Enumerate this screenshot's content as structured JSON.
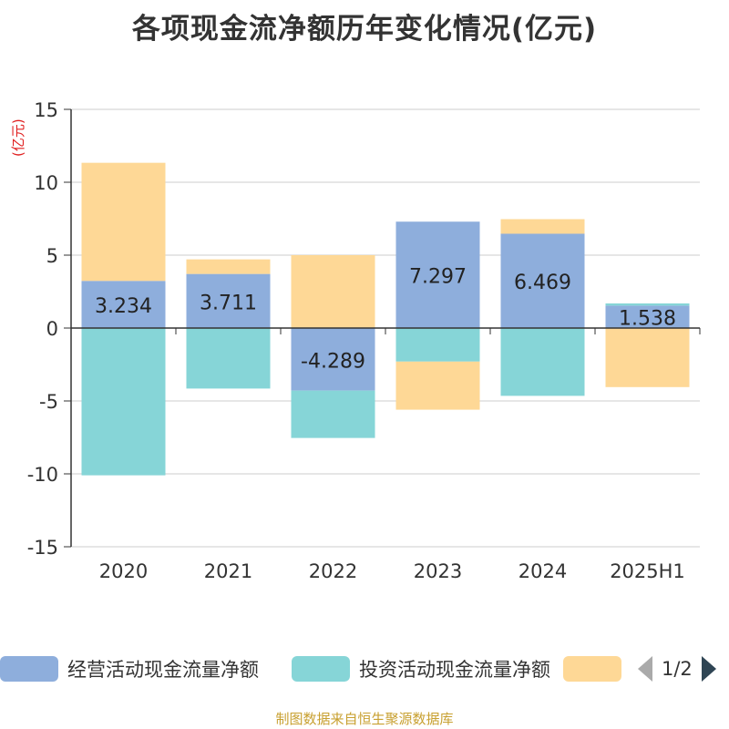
{
  "title": "各项现金流净额历年变化情况(亿元)",
  "y_unit": "(亿元)",
  "footer": "制图数据来自恒生聚源数据库",
  "colors": {
    "operating": "#8eaedc",
    "investing": "#86d5d7",
    "financing": "#fed896",
    "axis": "#333333",
    "grid": "#cccccc"
  },
  "legend": {
    "items": [
      {
        "label": "经营活动现金流量净额",
        "color": "#8eaedc"
      },
      {
        "label": "投资活动现金流量净额",
        "color": "#86d5d7"
      },
      {
        "label": "",
        "color": "#fed896"
      }
    ],
    "page_text": "1/2",
    "prev_icon": "triangle-left-icon",
    "next_icon": "triangle-right-icon"
  },
  "chart_data": {
    "type": "bar",
    "stacked": true,
    "categories": [
      "2020",
      "2021",
      "2022",
      "2023",
      "2024",
      "2025H1"
    ],
    "series": [
      {
        "name": "经营活动现金流量净额",
        "values": [
          3.234,
          3.711,
          -4.289,
          7.297,
          6.469,
          1.538
        ]
      },
      {
        "name": "投资活动现金流量净额",
        "values": [
          -10.1,
          -4.15,
          -3.25,
          -2.3,
          -4.65,
          0.15
        ]
      },
      {
        "values": [
          8.1,
          1.0,
          5.0,
          -3.3,
          1.0,
          -4.05
        ]
      }
    ],
    "data_labels": [
      "3.234",
      "3.711",
      "-4.289",
      "7.297",
      "6.469",
      "1.538"
    ],
    "ylim": [
      -15,
      15
    ],
    "yticks": [
      15,
      10,
      5,
      0,
      -5,
      -10,
      -15
    ],
    "grid": true,
    "legend_position": "bottom"
  }
}
